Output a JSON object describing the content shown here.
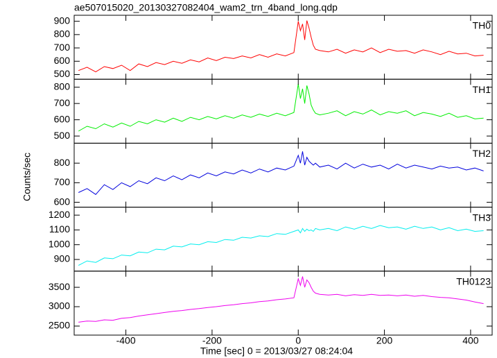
{
  "chart_data": {
    "type": "line",
    "title": "ae507015020_20130327082404_wam2_trn_4band_long.qdp",
    "xlabel": "Time [sec] 0 = 2013/03/27 08:24:04",
    "ylabel": "Counts/sec",
    "xlim": [
      -520,
      450
    ],
    "xticks": [
      -400,
      -200,
      0,
      200,
      400
    ],
    "x": [
      -510,
      -490,
      -470,
      -450,
      -430,
      -410,
      -390,
      -370,
      -350,
      -330,
      -310,
      -290,
      -270,
      -250,
      -230,
      -210,
      -190,
      -170,
      -150,
      -130,
      -110,
      -90,
      -70,
      -50,
      -30,
      -10,
      0,
      5,
      10,
      15,
      20,
      25,
      30,
      35,
      40,
      50,
      70,
      90,
      110,
      130,
      150,
      170,
      190,
      210,
      230,
      250,
      270,
      290,
      310,
      330,
      350,
      370,
      390,
      410,
      430
    ],
    "series": [
      {
        "name": "TH0",
        "color": "#ff0000",
        "ylim": [
          465,
          945
        ],
        "yticks": [
          500,
          600,
          700,
          800,
          900
        ],
        "values": [
          530,
          555,
          520,
          560,
          545,
          570,
          530,
          580,
          560,
          590,
          575,
          600,
          585,
          610,
          595,
          625,
          605,
          630,
          620,
          640,
          625,
          650,
          630,
          655,
          640,
          665,
          900,
          830,
          880,
          760,
          905,
          850,
          780,
          720,
          690,
          680,
          670,
          690,
          660,
          685,
          670,
          700,
          665,
          690,
          675,
          680,
          660,
          685,
          670,
          650,
          675,
          655,
          660,
          640,
          645
        ]
      },
      {
        "name": "TH1",
        "color": "#00ee00",
        "ylim": [
          456,
          849
        ],
        "yticks": [
          500,
          600,
          700,
          800
        ],
        "values": [
          530,
          560,
          545,
          575,
          555,
          580,
          560,
          590,
          575,
          600,
          585,
          610,
          590,
          615,
          600,
          620,
          605,
          625,
          610,
          630,
          615,
          635,
          620,
          640,
          625,
          645,
          820,
          730,
          790,
          700,
          810,
          760,
          690,
          660,
          640,
          630,
          640,
          655,
          625,
          650,
          635,
          660,
          630,
          650,
          640,
          655,
          625,
          645,
          635,
          620,
          640,
          615,
          625,
          605,
          610
        ]
      },
      {
        "name": "TH2",
        "color": "#0000dd",
        "ylim": [
          575,
          902
        ],
        "yticks": [
          600,
          700,
          800
        ],
        "values": [
          650,
          670,
          640,
          690,
          665,
          700,
          680,
          710,
          695,
          725,
          710,
          735,
          715,
          740,
          725,
          750,
          735,
          755,
          745,
          765,
          750,
          770,
          755,
          775,
          765,
          785,
          840,
          800,
          860,
          790,
          830,
          810,
          800,
          790,
          800,
          780,
          790,
          770,
          800,
          775,
          795,
          780,
          790,
          770,
          795,
          775,
          790,
          780,
          770,
          785,
          775,
          780,
          765,
          775,
          760
        ]
      },
      {
        "name": "TH3",
        "color": "#00eeee",
        "ylim": [
          821,
          1254
        ],
        "yticks": [
          900,
          1000,
          1100,
          1200
        ],
        "values": [
          860,
          890,
          880,
          910,
          905,
          930,
          925,
          950,
          945,
          970,
          965,
          990,
          985,
          1005,
          1000,
          1020,
          1015,
          1035,
          1030,
          1050,
          1045,
          1060,
          1055,
          1075,
          1070,
          1090,
          1100,
          1080,
          1110,
          1090,
          1105,
          1095,
          1100,
          1090,
          1110,
          1100,
          1110,
          1095,
          1120,
          1105,
          1125,
          1110,
          1130,
          1115,
          1120,
          1105,
          1125,
          1110,
          1120,
          1100,
          1115,
          1095,
          1105,
          1090,
          1095
        ]
      },
      {
        "name": "TH0123",
        "color": "#ee00ee",
        "ylim": [
          2267,
          3917
        ],
        "yticks": [
          2500,
          3000,
          3500
        ],
        "values": [
          2600,
          2630,
          2620,
          2660,
          2650,
          2700,
          2720,
          2760,
          2790,
          2820,
          2850,
          2880,
          2900,
          2930,
          2950,
          2980,
          3000,
          3030,
          3050,
          3080,
          3100,
          3130,
          3150,
          3180,
          3200,
          3230,
          3720,
          3550,
          3780,
          3500,
          3690,
          3620,
          3500,
          3400,
          3350,
          3320,
          3300,
          3320,
          3280,
          3310,
          3290,
          3320,
          3290,
          3300,
          3280,
          3300,
          3270,
          3290,
          3260,
          3240,
          3230,
          3200,
          3170,
          3120,
          3080
        ]
      }
    ]
  }
}
